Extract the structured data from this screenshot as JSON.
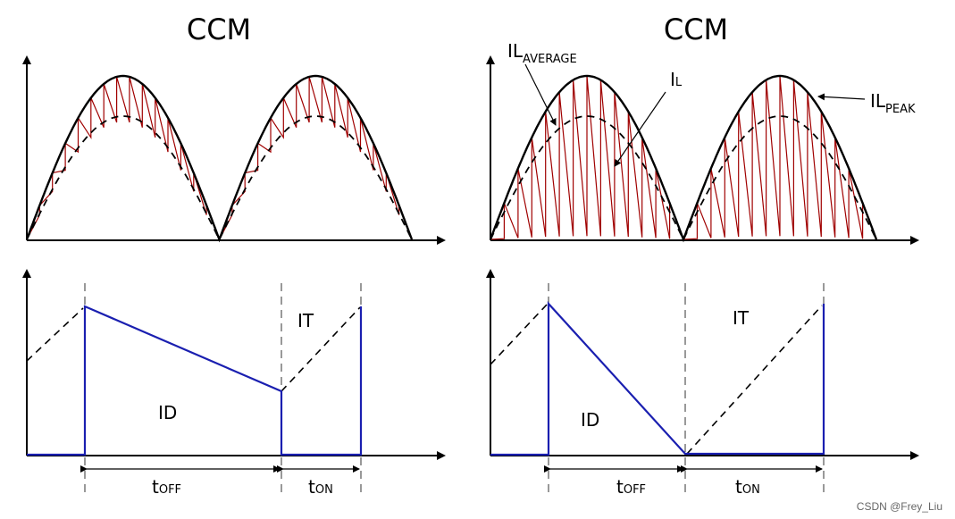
{
  "left": {
    "title": "CCM",
    "i_d": "I",
    "i_d_sub": "D",
    "i_t": "I",
    "i_t_sub": "T",
    "t_off": "t",
    "t_off_sub": "OFF",
    "t_on": "t",
    "t_on_sub": "ON"
  },
  "right": {
    "title": "CCM",
    "il_average": "IL",
    "il_average_sub": "AVERAGE",
    "il": "I",
    "il_sub": "L",
    "il_peak": "IL",
    "il_peak_sub": "PEAK",
    "i_d": "I",
    "i_d_sub": "D",
    "i_t": "I",
    "i_t_sub": "T",
    "t_off": "t",
    "t_off_sub": "OFF",
    "t_on": "t",
    "t_on_sub": "ON"
  },
  "watermark": "CSDN @Frey_Liu",
  "colors": {
    "ripple": "#a00000",
    "current": "#1a1fb0",
    "axis": "#000000"
  }
}
